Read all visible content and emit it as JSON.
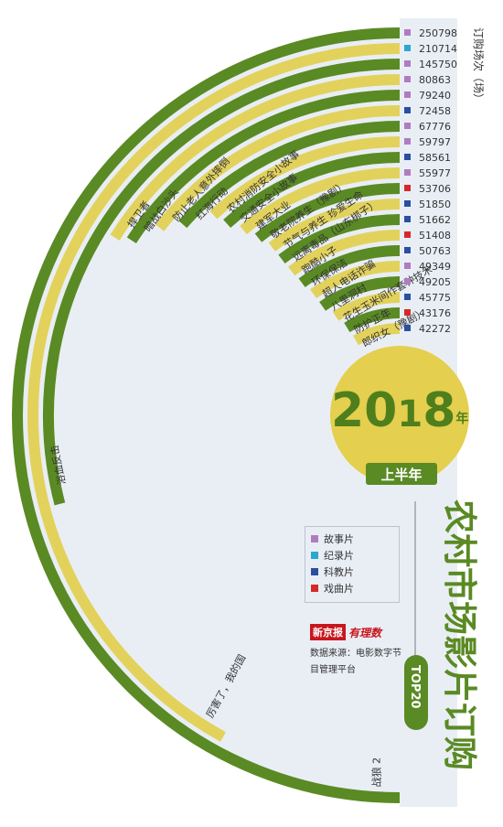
{
  "chart_data": {
    "type": "bar",
    "title": "农村市场影片订购",
    "badge": "TOP20",
    "year_big": "2018",
    "year_unit": "年",
    "period": "上半年",
    "unit_label": "订购场次（场）",
    "categories": [
      "战狼 2",
      "厉害了，我的国",
      "浴血反击",
      "捍卫者",
      "暗战白沙头",
      "防止老人意外摔倒",
      "红海行动",
      "农村消防安全小故事",
      "交通安全小故事",
      "建军大业",
      "敬老院养生（豫剧）",
      "节气与养生 珍爱生命",
      "远离毒品（山东梆子）",
      "跑酷小子",
      "环保保洁",
      "超人电话诈骗",
      "八里洞村",
      "花生玉米间作套种技术",
      "防护正年",
      "郎织女（豫剧）"
    ],
    "values": [
      250798,
      210714,
      145750,
      80863,
      79240,
      72458,
      67776,
      59797,
      58561,
      55977,
      53706,
      51850,
      51662,
      51408,
      50763,
      49349,
      49205,
      45775,
      43176,
      42272
    ],
    "value_labels": [
      "250798",
      "210714",
      "145750",
      "80863",
      "79240",
      "72458",
      "67776",
      "59797",
      "58561",
      "55977",
      "53706",
      "51850",
      "51662",
      "51408",
      "50763",
      "49349",
      "49205",
      "45775",
      "43176",
      "42272"
    ],
    "genres": [
      "story",
      "documentary",
      "story",
      "story",
      "story",
      "science",
      "story",
      "story",
      "science",
      "story",
      "opera",
      "science",
      "science",
      "opera",
      "science",
      "story",
      "story",
      "science",
      "opera",
      "science"
    ],
    "legend": [
      {
        "key": "story",
        "label": "故事片"
      },
      {
        "key": "documentary",
        "label": "纪录片"
      },
      {
        "key": "science",
        "label": "科教片"
      },
      {
        "key": "opera",
        "label": "戏曲片"
      }
    ]
  },
  "colors": {
    "dark_green": "#5a8a24",
    "yellow": "#e2d25c",
    "panel": "#e9eef5",
    "center_disc": "#e4cf4e",
    "story": "#b07cc0",
    "documentary": "#2aa8cf",
    "science": "#2b4fa0",
    "opera": "#d42a2a"
  },
  "source": {
    "logo_a": "新京报",
    "logo_b": "有理数",
    "text": "数据来源：电影数字节目管理平台"
  }
}
